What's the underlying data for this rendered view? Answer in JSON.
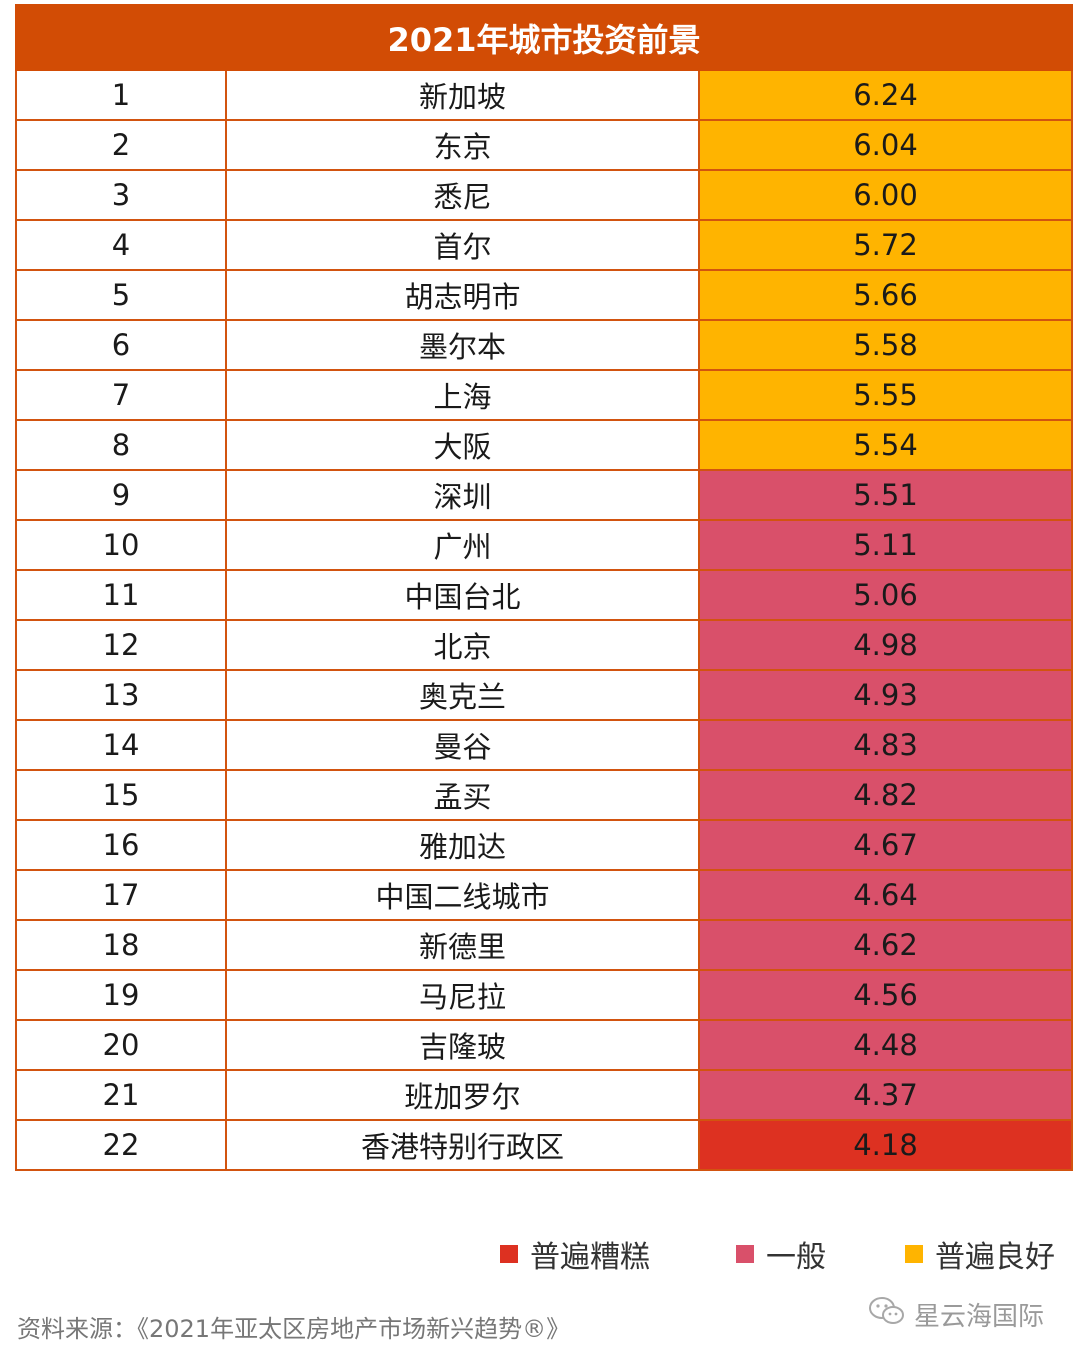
{
  "table": {
    "title": "2021年城市投资前景",
    "rows": [
      {
        "rank": "1",
        "city": "新加坡",
        "score": "6.24",
        "category": "good"
      },
      {
        "rank": "2",
        "city": "东京",
        "score": "6.04",
        "category": "good"
      },
      {
        "rank": "3",
        "city": "悉尼",
        "score": "6.00",
        "category": "good"
      },
      {
        "rank": "4",
        "city": "首尔",
        "score": "5.72",
        "category": "good"
      },
      {
        "rank": "5",
        "city": "胡志明市",
        "score": "5.66",
        "category": "good"
      },
      {
        "rank": "6",
        "city": "墨尔本",
        "score": "5.58",
        "category": "good"
      },
      {
        "rank": "7",
        "city": "上海",
        "score": "5.55",
        "category": "good"
      },
      {
        "rank": "8",
        "city": "大阪",
        "score": "5.54",
        "category": "good"
      },
      {
        "rank": "9",
        "city": "深圳",
        "score": "5.51",
        "category": "mid"
      },
      {
        "rank": "10",
        "city": "广州",
        "score": "5.11",
        "category": "mid"
      },
      {
        "rank": "11",
        "city": "中国台北",
        "score": "5.06",
        "category": "mid"
      },
      {
        "rank": "12",
        "city": "北京",
        "score": "4.98",
        "category": "mid"
      },
      {
        "rank": "13",
        "city": "奥克兰",
        "score": "4.93",
        "category": "mid"
      },
      {
        "rank": "14",
        "city": "曼谷",
        "score": "4.83",
        "category": "mid"
      },
      {
        "rank": "15",
        "city": "孟买",
        "score": "4.82",
        "category": "mid"
      },
      {
        "rank": "16",
        "city": "雅加达",
        "score": "4.67",
        "category": "mid"
      },
      {
        "rank": "17",
        "city": "中国二线城市",
        "score": "4.64",
        "category": "mid"
      },
      {
        "rank": "18",
        "city": "新德里",
        "score": "4.62",
        "category": "mid"
      },
      {
        "rank": "19",
        "city": "马尼拉",
        "score": "4.56",
        "category": "mid"
      },
      {
        "rank": "20",
        "city": "吉隆玻",
        "score": "4.48",
        "category": "mid"
      },
      {
        "rank": "21",
        "city": "班加罗尔",
        "score": "4.37",
        "category": "mid"
      },
      {
        "rank": "22",
        "city": "香港特别行政区",
        "score": "4.18",
        "category": "bad"
      }
    ]
  },
  "legend": {
    "bad": {
      "label": "普遍糟糕",
      "color": "#dd3121"
    },
    "mid": {
      "label": "一般",
      "color": "#d9506a"
    },
    "good": {
      "label": "普遍良好",
      "color": "#ffb400"
    }
  },
  "footer": {
    "source": "资料来源：《2021年亚太区房地产市场新兴趋势®》",
    "watermark": "星云海国际",
    "watermark_icon": "wechat-icon"
  },
  "colors": {
    "header": "#d24c05",
    "border": "#d2540f"
  }
}
